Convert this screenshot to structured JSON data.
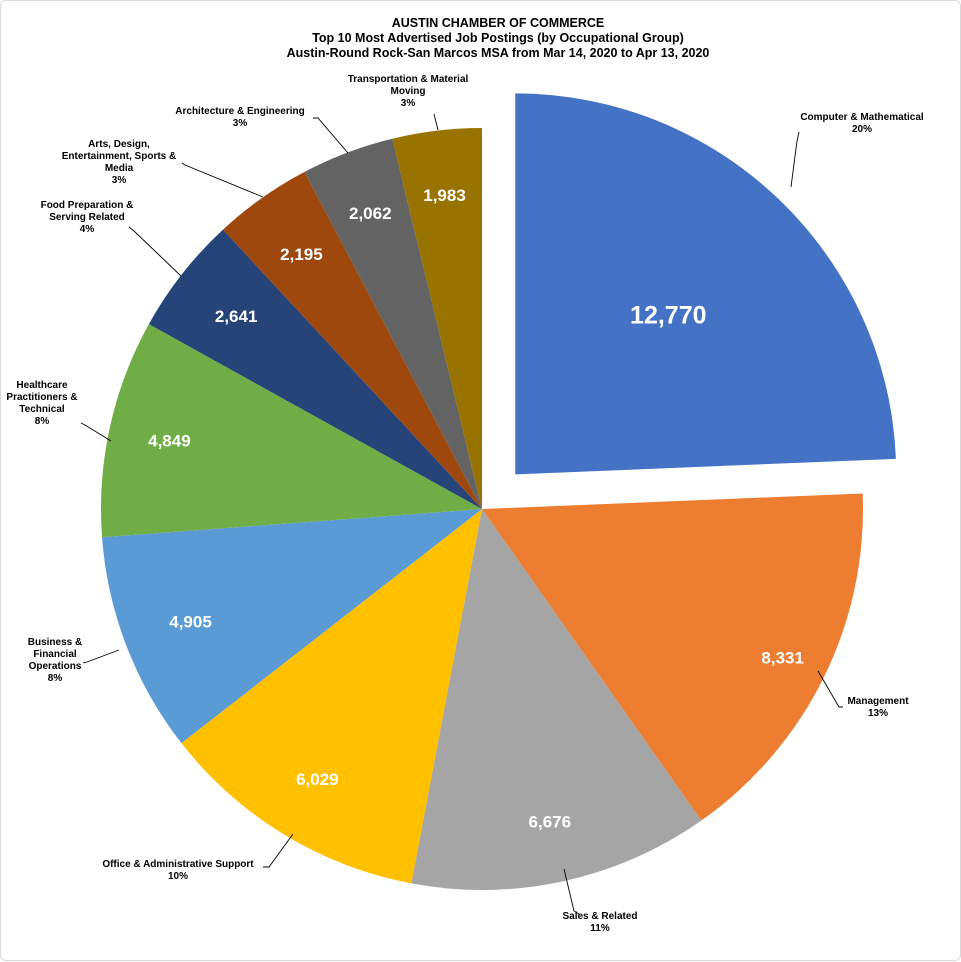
{
  "chart_data": {
    "type": "pie",
    "title": [
      "AUSTIN CHAMBER  OF COMMERCE",
      "Top 10 Most Advertised  Job Postings  (by Occupational Group)",
      "Austin-Round  Rock-San Marcos MSA from Mar 14, 2020 to Apr 13, 2020"
    ],
    "slices": [
      {
        "label": [
          "Computer & Mathematical"
        ],
        "value": 12770,
        "value_label": "12,770",
        "percent_label": "20%",
        "color": "#4472C4",
        "exploded": true
      },
      {
        "label": [
          "Management"
        ],
        "value": 8331,
        "value_label": "8,331",
        "percent_label": "13%",
        "color": "#ED7D31"
      },
      {
        "label": [
          "Sales & Related"
        ],
        "value": 6676,
        "value_label": "6,676",
        "percent_label": "11%",
        "color": "#A5A5A5"
      },
      {
        "label": [
          "Office & Administrative Support"
        ],
        "value": 6029,
        "value_label": "6,029",
        "percent_label": "10%",
        "color": "#FFC000"
      },
      {
        "label": [
          "Business &",
          "Financial",
          "Operations"
        ],
        "value": 4905,
        "value_label": "4,905",
        "percent_label": "8%",
        "color": "#5B9BD5"
      },
      {
        "label": [
          "Healthcare",
          "Practitioners &",
          "Technical"
        ],
        "value": 4849,
        "value_label": "4,849",
        "percent_label": "8%",
        "color": "#70AD47"
      },
      {
        "label": [
          "Food Preparation &",
          "Serving Related"
        ],
        "value": 2641,
        "value_label": "2,641",
        "percent_label": "4%",
        "color": "#264478"
      },
      {
        "label": [
          "Arts, Design,",
          "Entertainment, Sports &",
          "Media"
        ],
        "value": 2195,
        "value_label": "2,195",
        "percent_label": "3%",
        "color": "#9E480E"
      },
      {
        "label": [
          "Architecture & Engineering"
        ],
        "value": 2062,
        "value_label": "2,062",
        "percent_label": "3%",
        "color": "#636363"
      },
      {
        "label": [
          "Transportation & Material",
          "Moving"
        ],
        "value": 1983,
        "value_label": "1,983",
        "percent_label": "3%",
        "color": "#997300"
      }
    ]
  }
}
